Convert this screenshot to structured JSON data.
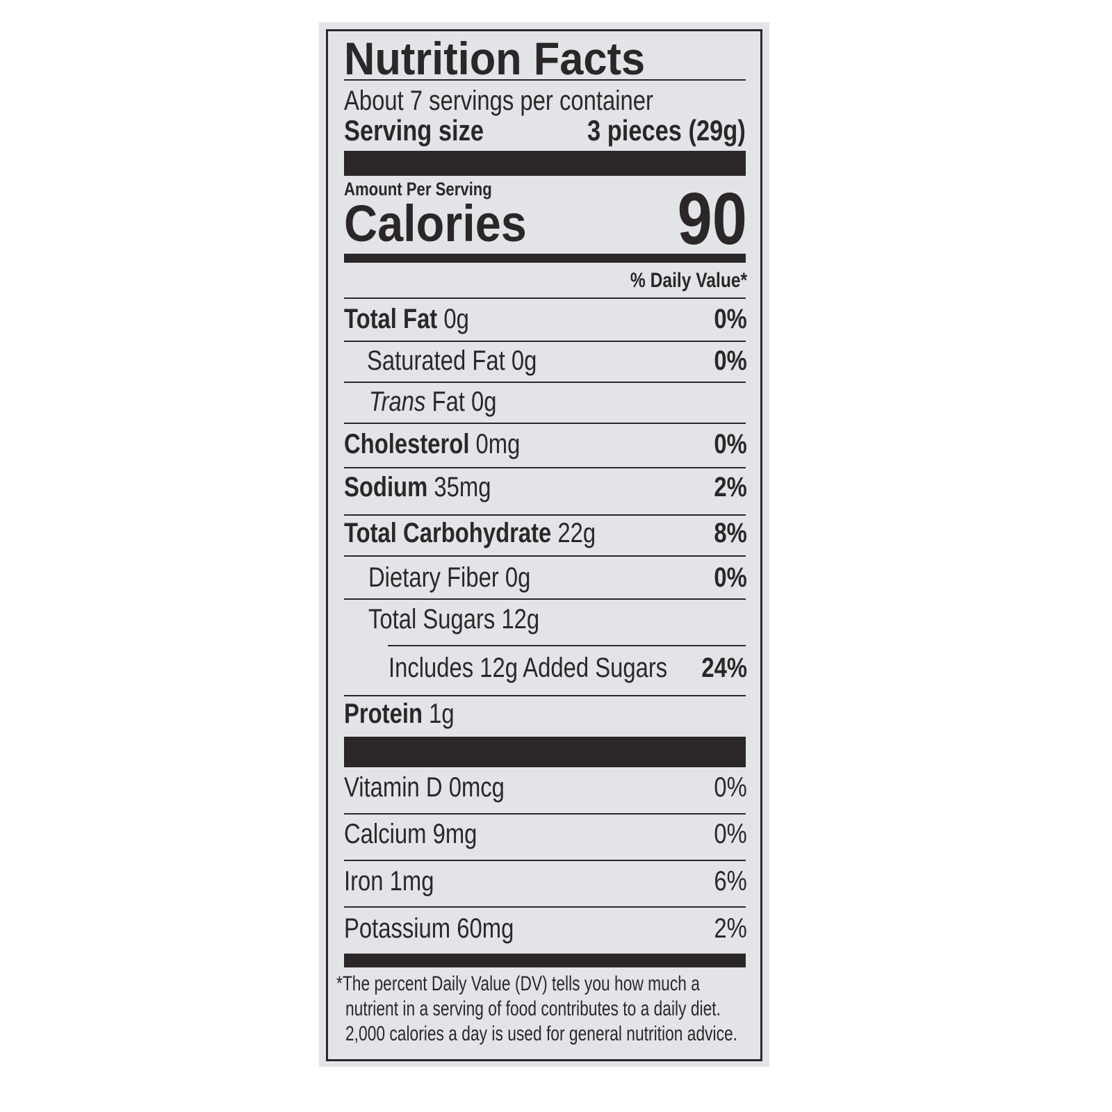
{
  "title": "Nutrition Facts",
  "servings_per_container": "About 7 servings per container",
  "serving_size": {
    "label": "Serving size",
    "value": "3 pieces (29g)"
  },
  "amount_per_serving": "Amount Per Serving",
  "calories": {
    "label": "Calories",
    "value": "90"
  },
  "daily_value_header": "% Daily Value*",
  "nutrients": [
    {
      "name": "Total Fat",
      "amount": "0g",
      "dv": "0%"
    },
    {
      "name": "Saturated Fat",
      "amount": "0g",
      "dv": "0%"
    },
    {
      "name": "Trans",
      "name_suffix": "Fat",
      "amount": "0g",
      "dv": ""
    },
    {
      "name": "Cholesterol",
      "amount": "0mg",
      "dv": "0%"
    },
    {
      "name": "Sodium",
      "amount": "35mg",
      "dv": "2%"
    },
    {
      "name": "Total Carbohydrate",
      "amount": "22g",
      "dv": "8%"
    },
    {
      "name": "Dietary Fiber",
      "amount": "0g",
      "dv": "0%"
    },
    {
      "name": "Total Sugars",
      "amount": "12g",
      "dv": ""
    },
    {
      "name": "Includes 12g Added Sugars",
      "amount": "",
      "dv": "24%"
    },
    {
      "name": "Protein",
      "amount": "1g",
      "dv": ""
    }
  ],
  "vitamins": [
    {
      "name": "Vitamin D",
      "amount": "0mcg",
      "dv": "0%"
    },
    {
      "name": "Calcium",
      "amount": "9mg",
      "dv": "0%"
    },
    {
      "name": "Iron",
      "amount": "1mg",
      "dv": "6%"
    },
    {
      "name": "Potassium",
      "amount": "60mg",
      "dv": "2%"
    }
  ],
  "footnote": [
    "*The percent Daily Value (DV) tells you how much a",
    "nutrient in a serving of food contributes to a daily diet.",
    "2,000 calories a day is used for general nutrition advice."
  ],
  "colors": {
    "ink": "#2b2728",
    "background": "#e3e4e8"
  }
}
